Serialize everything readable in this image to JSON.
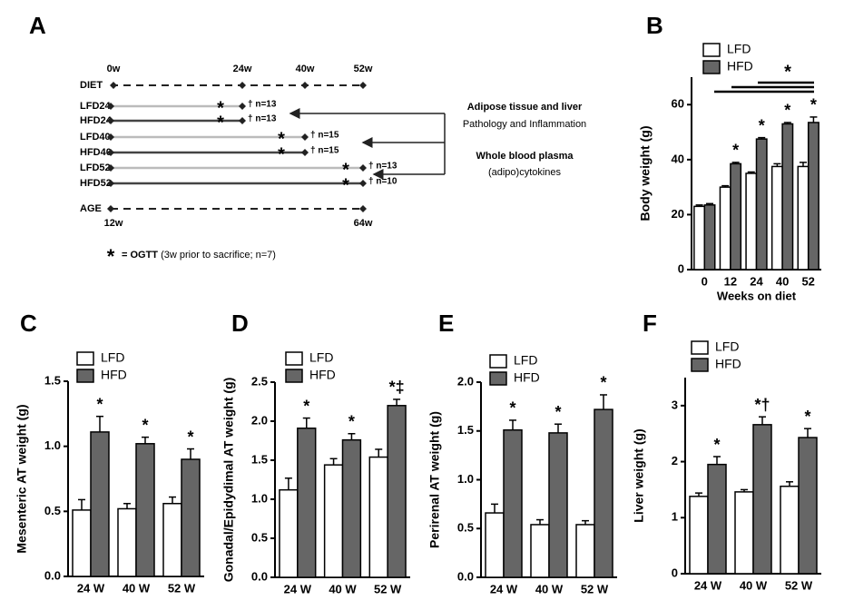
{
  "timeline": {
    "panel": "A",
    "weeks": [
      "0w",
      "24w",
      "40w",
      "52w"
    ],
    "diet_label": "DIET",
    "rows": [
      {
        "label": "LFD24",
        "note": "† n=13"
      },
      {
        "label": "HFD24",
        "note": "† n=13"
      },
      {
        "label": "LFD40",
        "note": "† n=15"
      },
      {
        "label": "HFD40",
        "note": "† n=15"
      },
      {
        "label": "LFD52",
        "note": "† n=13"
      },
      {
        "label": "HFD52",
        "note": "† n=10"
      }
    ],
    "age_label": "AGE",
    "age_start": "12w",
    "age_end": "64w",
    "outcomes": [
      {
        "title": "Adipose tissue and liver",
        "detail": "Pathology and Inflammation"
      },
      {
        "title": "Whole blood plasma",
        "detail": "(adipo)cytokines"
      }
    ],
    "legend": {
      "symbol": "*",
      "label": "= OGTT",
      "detail": "(3w prior to sacrifice; n=7)"
    }
  },
  "chart_data": [
    {
      "type": "bar",
      "panel": "B",
      "y_label": "Body weight (g)",
      "x_label": "Weeks on diet",
      "categories": [
        "0",
        "12",
        "24",
        "40",
        "52"
      ],
      "series": [
        {
          "name": "LFD",
          "color": "#ffffff",
          "values": [
            23,
            30,
            35,
            37.5,
            37.5
          ],
          "errors": [
            0.5,
            0.5,
            0.5,
            1,
            1.5
          ]
        },
        {
          "name": "HFD",
          "color": "#666666",
          "values": [
            23.5,
            38.5,
            47.5,
            53,
            53.5
          ],
          "errors": [
            0.5,
            0.5,
            0.5,
            0.5,
            2
          ]
        }
      ],
      "annotations": [
        null,
        "*",
        "*",
        "*",
        "*"
      ],
      "significance_label": "*",
      "ylim": [
        0,
        70
      ],
      "yticks": [
        0,
        20,
        40,
        60
      ]
    },
    {
      "type": "bar",
      "panel": "C",
      "y_label": "Mesenteric AT weight (g)",
      "categories": [
        "24 W",
        "40 W",
        "52 W"
      ],
      "series": [
        {
          "name": "LFD",
          "color": "#ffffff",
          "values": [
            0.51,
            0.52,
            0.56
          ],
          "errors": [
            0.08,
            0.04,
            0.05
          ]
        },
        {
          "name": "HFD",
          "color": "#666666",
          "values": [
            1.11,
            1.02,
            0.9
          ],
          "errors": [
            0.12,
            0.05,
            0.08
          ]
        }
      ],
      "annotations": [
        "*",
        "*",
        "*"
      ],
      "ylim": [
        0,
        1.5
      ],
      "yticks": [
        {
          "value": 0,
          "label": "0.0"
        },
        0.5,
        {
          "value": 1,
          "label": "1.0"
        },
        1.5
      ]
    },
    {
      "type": "bar",
      "panel": "D",
      "y_label": "Gonadal/Epidydimal AT weight (g)",
      "categories": [
        "24 W",
        "40 W",
        "52 W"
      ],
      "series": [
        {
          "name": "LFD",
          "color": "#ffffff",
          "values": [
            1.12,
            1.44,
            1.54
          ],
          "errors": [
            0.15,
            0.08,
            0.1
          ]
        },
        {
          "name": "HFD",
          "color": "#666666",
          "values": [
            1.91,
            1.76,
            2.2
          ],
          "errors": [
            0.13,
            0.08,
            0.08
          ]
        }
      ],
      "annotations": [
        "*",
        "*",
        "*‡"
      ],
      "ylim": [
        0,
        2.5
      ],
      "yticks": [
        {
          "value": 0,
          "label": "0.0"
        },
        0.5,
        {
          "value": 1,
          "label": "1.0"
        },
        1.5,
        {
          "value": 2,
          "label": "2.0"
        },
        2.5
      ]
    },
    {
      "type": "bar",
      "panel": "E",
      "y_label": "Perirenal AT weight (g)",
      "categories": [
        "24 W",
        "40 W",
        "52 W"
      ],
      "series": [
        {
          "name": "LFD",
          "color": "#ffffff",
          "values": [
            0.66,
            0.54,
            0.54
          ],
          "errors": [
            0.09,
            0.05,
            0.04
          ]
        },
        {
          "name": "HFD",
          "color": "#666666",
          "values": [
            1.51,
            1.48,
            1.72
          ],
          "errors": [
            0.1,
            0.09,
            0.15
          ]
        }
      ],
      "annotations": [
        "*",
        "*",
        "*"
      ],
      "ylim": [
        0,
        2
      ],
      "yticks": [
        {
          "value": 0,
          "label": "0.0"
        },
        0.5,
        {
          "value": 1,
          "label": "1.0"
        },
        1.5,
        {
          "value": 2,
          "label": "2.0"
        }
      ]
    },
    {
      "type": "bar",
      "panel": "F",
      "y_label": "Liver weight (g)",
      "categories": [
        "24 W",
        "40 W",
        "52 W"
      ],
      "series": [
        {
          "name": "LFD",
          "color": "#ffffff",
          "values": [
            1.38,
            1.46,
            1.56
          ],
          "errors": [
            0.06,
            0.04,
            0.08
          ]
        },
        {
          "name": "HFD",
          "color": "#666666",
          "values": [
            1.95,
            2.66,
            2.43
          ],
          "errors": [
            0.14,
            0.14,
            0.16
          ]
        }
      ],
      "annotations": [
        "*",
        "*†",
        "*"
      ],
      "ylim": [
        0,
        3.5
      ],
      "yticks": [
        0,
        1,
        2,
        3
      ]
    }
  ]
}
